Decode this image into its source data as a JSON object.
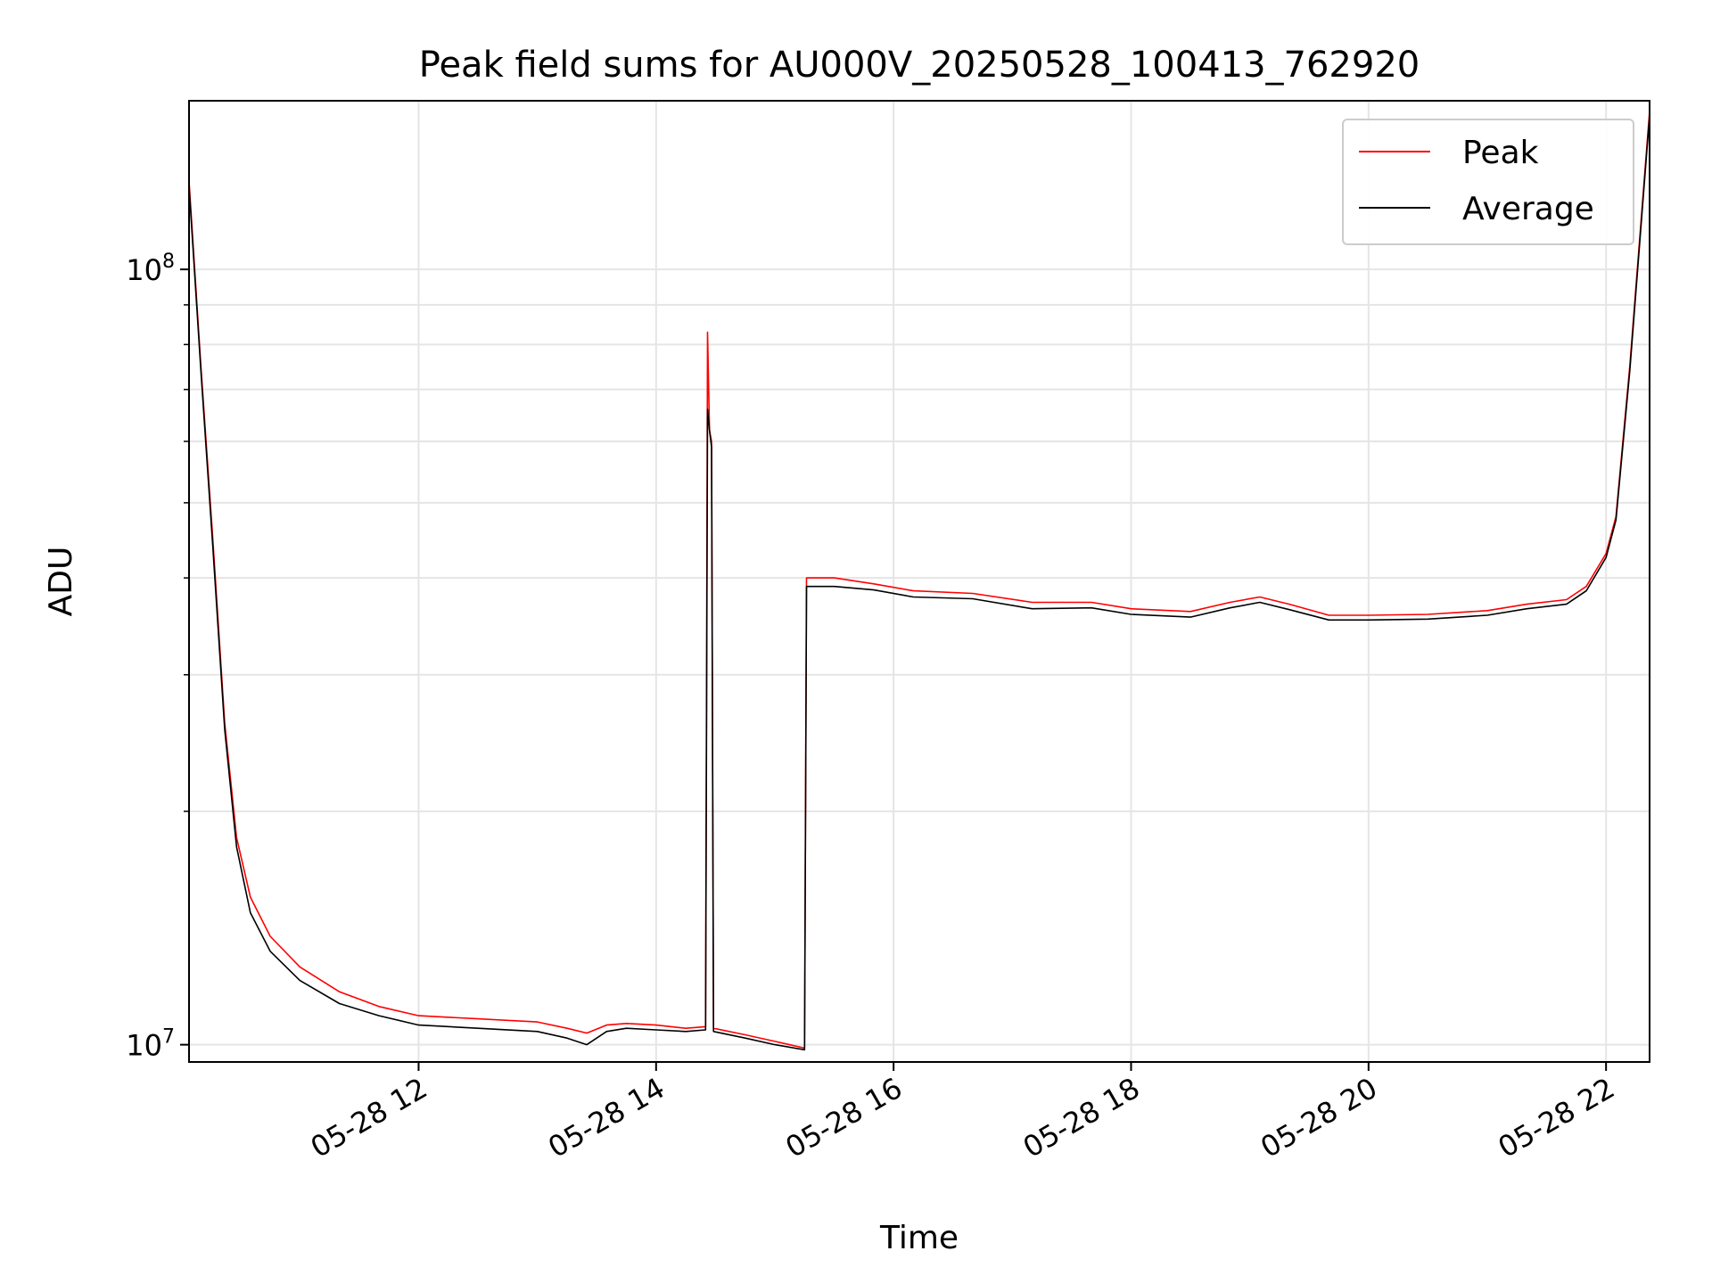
{
  "chart_data": {
    "type": "line",
    "title": "Peak field sums for AU000V_20250528_100413_762920",
    "xlabel": "Time",
    "ylabel": "ADU",
    "y_scale": "log",
    "xlim": [
      "2025-05-28 10:04",
      "2025-05-28 22:22"
    ],
    "ylim": [
      9500000,
      165000000
    ],
    "grid": true,
    "grid_minor_y": true,
    "legend_position": "top-right",
    "x_ticks": [
      {
        "value": "2025-05-28 12:00",
        "label": "05-28 12"
      },
      {
        "value": "2025-05-28 14:00",
        "label": "05-28 14"
      },
      {
        "value": "2025-05-28 16:00",
        "label": "05-28 16"
      },
      {
        "value": "2025-05-28 18:00",
        "label": "05-28 18"
      },
      {
        "value": "2025-05-28 20:00",
        "label": "05-28 20"
      },
      {
        "value": "2025-05-28 22:00",
        "label": "05-28 22"
      }
    ],
    "y_ticks": [
      {
        "value": 10000000,
        "base": "10",
        "exp": "7"
      },
      {
        "value": 100000000,
        "base": "10",
        "exp": "8"
      }
    ],
    "series": [
      {
        "name": "Peak",
        "color": "#ff0000",
        "points": [
          [
            "2025-05-28 10:04",
            130000000
          ],
          [
            "2025-05-28 10:10",
            75000000
          ],
          [
            "2025-05-28 10:16",
            45000000
          ],
          [
            "2025-05-28 10:22",
            26000000
          ],
          [
            "2025-05-28 10:28",
            18500000
          ],
          [
            "2025-05-28 10:35",
            15500000
          ],
          [
            "2025-05-28 10:45",
            13800000
          ],
          [
            "2025-05-28 11:00",
            12600000
          ],
          [
            "2025-05-28 11:20",
            11700000
          ],
          [
            "2025-05-28 11:40",
            11200000
          ],
          [
            "2025-05-28 12:00",
            10900000
          ],
          [
            "2025-05-28 12:30",
            10800000
          ],
          [
            "2025-05-28 13:00",
            10700000
          ],
          [
            "2025-05-28 13:15",
            10500000
          ],
          [
            "2025-05-28 13:25",
            10350000
          ],
          [
            "2025-05-28 13:35",
            10600000
          ],
          [
            "2025-05-28 13:45",
            10650000
          ],
          [
            "2025-05-28 14:00",
            10600000
          ],
          [
            "2025-05-28 14:15",
            10500000
          ],
          [
            "2025-05-28 14:25",
            10550000
          ],
          [
            "2025-05-28 14:26",
            83000000
          ],
          [
            "2025-05-28 14:27",
            62000000
          ],
          [
            "2025-05-28 14:28",
            60000000
          ],
          [
            "2025-05-28 14:29",
            10500000
          ],
          [
            "2025-05-28 14:45",
            10300000
          ],
          [
            "2025-05-28 15:00",
            10100000
          ],
          [
            "2025-05-28 15:15",
            9900000
          ],
          [
            "2025-05-28 15:16",
            40000000
          ],
          [
            "2025-05-28 15:30",
            40000000
          ],
          [
            "2025-05-28 15:50",
            39300000
          ],
          [
            "2025-05-28 16:10",
            38500000
          ],
          [
            "2025-05-28 16:40",
            38200000
          ],
          [
            "2025-05-28 17:10",
            37200000
          ],
          [
            "2025-05-28 17:40",
            37200000
          ],
          [
            "2025-05-28 18:00",
            36500000
          ],
          [
            "2025-05-28 18:30",
            36200000
          ],
          [
            "2025-05-28 18:50",
            37200000
          ],
          [
            "2025-05-28 19:05",
            37800000
          ],
          [
            "2025-05-28 19:20",
            37000000
          ],
          [
            "2025-05-28 19:40",
            35800000
          ],
          [
            "2025-05-28 20:00",
            35800000
          ],
          [
            "2025-05-28 20:30",
            35900000
          ],
          [
            "2025-05-28 21:00",
            36300000
          ],
          [
            "2025-05-28 21:20",
            37000000
          ],
          [
            "2025-05-28 21:40",
            37500000
          ],
          [
            "2025-05-28 21:50",
            39000000
          ],
          [
            "2025-05-28 22:00",
            43000000
          ],
          [
            "2025-05-28 22:05",
            48000000
          ],
          [
            "2025-05-28 22:12",
            75000000
          ],
          [
            "2025-05-28 22:22",
            160000000
          ]
        ]
      },
      {
        "name": "Average",
        "color": "#000000",
        "points": [
          [
            "2025-05-28 10:04",
            128000000
          ],
          [
            "2025-05-28 10:10",
            74000000
          ],
          [
            "2025-05-28 10:16",
            44000000
          ],
          [
            "2025-05-28 10:22",
            25500000
          ],
          [
            "2025-05-28 10:28",
            18000000
          ],
          [
            "2025-05-28 10:35",
            14800000
          ],
          [
            "2025-05-28 10:45",
            13200000
          ],
          [
            "2025-05-28 11:00",
            12100000
          ],
          [
            "2025-05-28 11:20",
            11300000
          ],
          [
            "2025-05-28 11:40",
            10900000
          ],
          [
            "2025-05-28 12:00",
            10600000
          ],
          [
            "2025-05-28 12:30",
            10500000
          ],
          [
            "2025-05-28 13:00",
            10400000
          ],
          [
            "2025-05-28 13:15",
            10200000
          ],
          [
            "2025-05-28 13:25",
            10000000
          ],
          [
            "2025-05-28 13:35",
            10400000
          ],
          [
            "2025-05-28 13:45",
            10500000
          ],
          [
            "2025-05-28 14:00",
            10450000
          ],
          [
            "2025-05-28 14:15",
            10400000
          ],
          [
            "2025-05-28 14:25",
            10450000
          ],
          [
            "2025-05-28 14:26",
            66000000
          ],
          [
            "2025-05-28 14:27",
            62000000
          ],
          [
            "2025-05-28 14:28",
            59000000
          ],
          [
            "2025-05-28 14:29",
            10400000
          ],
          [
            "2025-05-28 14:45",
            10200000
          ],
          [
            "2025-05-28 15:00",
            10000000
          ],
          [
            "2025-05-28 15:15",
            9850000
          ],
          [
            "2025-05-28 15:16",
            39000000
          ],
          [
            "2025-05-28 15:30",
            39000000
          ],
          [
            "2025-05-28 15:50",
            38600000
          ],
          [
            "2025-05-28 16:10",
            37800000
          ],
          [
            "2025-05-28 16:40",
            37600000
          ],
          [
            "2025-05-28 17:10",
            36500000
          ],
          [
            "2025-05-28 17:40",
            36600000
          ],
          [
            "2025-05-28 18:00",
            35900000
          ],
          [
            "2025-05-28 18:30",
            35600000
          ],
          [
            "2025-05-28 18:50",
            36600000
          ],
          [
            "2025-05-28 19:05",
            37200000
          ],
          [
            "2025-05-28 19:20",
            36400000
          ],
          [
            "2025-05-28 19:40",
            35300000
          ],
          [
            "2025-05-28 20:00",
            35300000
          ],
          [
            "2025-05-28 20:30",
            35400000
          ],
          [
            "2025-05-28 21:00",
            35800000
          ],
          [
            "2025-05-28 21:20",
            36500000
          ],
          [
            "2025-05-28 21:40",
            37000000
          ],
          [
            "2025-05-28 21:50",
            38500000
          ],
          [
            "2025-05-28 22:00",
            42500000
          ],
          [
            "2025-05-28 22:05",
            47500000
          ],
          [
            "2025-05-28 22:12",
            74000000
          ],
          [
            "2025-05-28 22:22",
            158000000
          ]
        ]
      }
    ]
  }
}
